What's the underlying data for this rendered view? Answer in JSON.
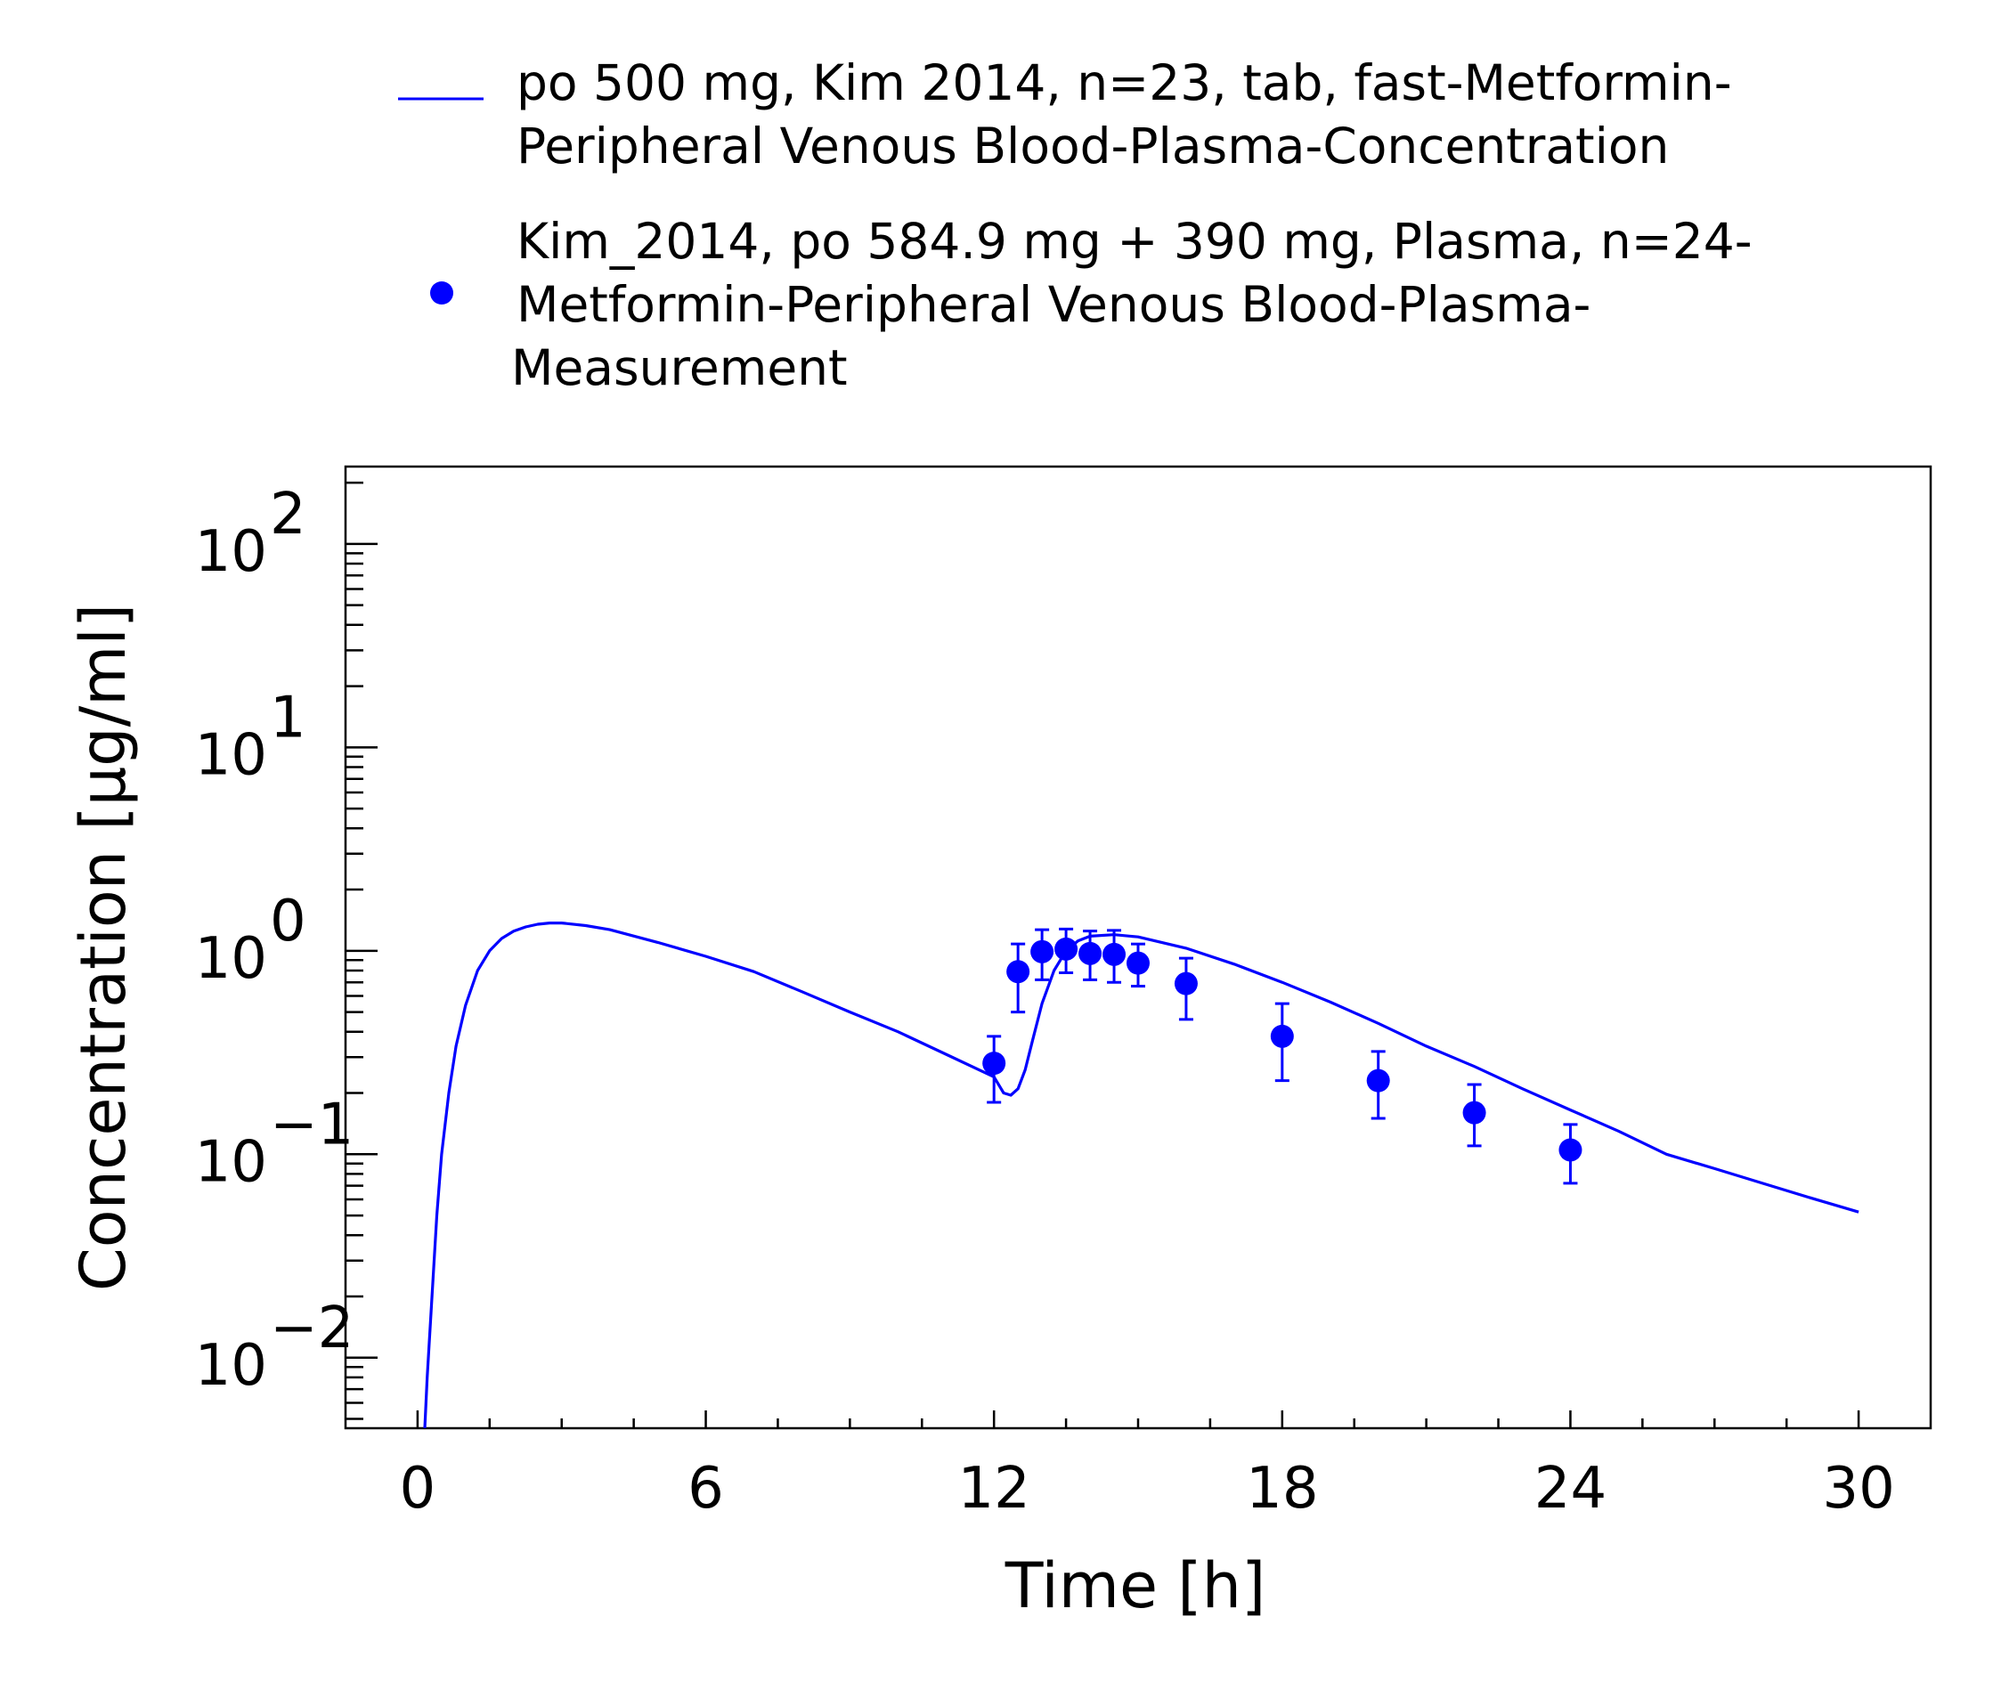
{
  "chart_data": {
    "type": "line",
    "xlabel": "Time [h]",
    "ylabel": "Concentration [µg/ml]",
    "xlim": [
      -1.5,
      31.5
    ],
    "ylim": [
      0.0045,
      240
    ],
    "yscale": "log",
    "xticks": [
      0,
      6,
      12,
      18,
      24,
      30
    ],
    "yticks": [
      {
        "value": 0.01,
        "base": "10",
        "exp": "−2"
      },
      {
        "value": 0.1,
        "base": "10",
        "exp": "−1"
      },
      {
        "value": 1,
        "base": "10",
        "exp": "0"
      },
      {
        "value": 10,
        "base": "10",
        "exp": "1"
      },
      {
        "value": 100,
        "base": "10",
        "exp": "2"
      }
    ],
    "legend_position": "top",
    "series": [
      {
        "kind": "line",
        "color": "#0000ff",
        "legend": [
          "po 500 mg, Kim 2014, n=23, tab, fast-Metformin-",
          "Peripheral Venous Blood-Plasma-Concentration"
        ],
        "x": [
          0.15,
          0.2,
          0.3,
          0.4,
          0.5,
          0.65,
          0.8,
          1.0,
          1.25,
          1.5,
          1.75,
          2.0,
          2.25,
          2.5,
          2.75,
          3.0,
          3.5,
          4.0,
          5.0,
          6.0,
          7.0,
          8.0,
          9.0,
          10.0,
          11.0,
          12.0,
          12.2,
          12.35,
          12.5,
          12.65,
          12.8,
          13.0,
          13.25,
          13.5,
          13.75,
          14.0,
          14.5,
          15.0,
          16.0,
          17.0,
          18.0,
          19.0,
          20.0,
          21.0,
          22.0,
          23.0,
          24.0,
          25.0,
          26.0,
          27.0,
          28.0,
          29.0,
          30.0
        ],
        "y": [
          0.0045,
          0.008,
          0.02,
          0.05,
          0.1,
          0.2,
          0.34,
          0.54,
          0.8,
          1.0,
          1.15,
          1.25,
          1.31,
          1.35,
          1.37,
          1.37,
          1.33,
          1.27,
          1.1,
          0.94,
          0.79,
          0.63,
          0.5,
          0.4,
          0.31,
          0.24,
          0.2,
          0.195,
          0.21,
          0.26,
          0.36,
          0.55,
          0.8,
          1.0,
          1.12,
          1.18,
          1.2,
          1.17,
          1.03,
          0.86,
          0.7,
          0.56,
          0.44,
          0.34,
          0.27,
          0.21,
          0.165,
          0.13,
          0.1,
          0.085,
          0.072,
          0.061,
          0.052
        ]
      },
      {
        "kind": "errorbar",
        "color": "#0000ff",
        "legend": [
          "Kim_2014, po 584.9 mg + 390 mg, Plasma, n=24-",
          "Metformin-Peripheral Venous Blood-Plasma-",
          "Measurement"
        ],
        "points": [
          {
            "x": 12.0,
            "y": 0.28,
            "lo": 0.18,
            "hi": 0.38
          },
          {
            "x": 12.5,
            "y": 0.79,
            "lo": 0.5,
            "hi": 1.08
          },
          {
            "x": 13.0,
            "y": 0.99,
            "lo": 0.72,
            "hi": 1.27
          },
          {
            "x": 13.5,
            "y": 1.02,
            "lo": 0.78,
            "hi": 1.28
          },
          {
            "x": 14.0,
            "y": 0.97,
            "lo": 0.72,
            "hi": 1.25
          },
          {
            "x": 14.5,
            "y": 0.96,
            "lo": 0.7,
            "hi": 1.26
          },
          {
            "x": 15.0,
            "y": 0.87,
            "lo": 0.67,
            "hi": 1.08
          },
          {
            "x": 16.0,
            "y": 0.69,
            "lo": 0.46,
            "hi": 0.92
          },
          {
            "x": 18.0,
            "y": 0.38,
            "lo": 0.23,
            "hi": 0.55
          },
          {
            "x": 20.0,
            "y": 0.23,
            "lo": 0.15,
            "hi": 0.32
          },
          {
            "x": 22.0,
            "y": 0.16,
            "lo": 0.11,
            "hi": 0.22
          },
          {
            "x": 24.0,
            "y": 0.105,
            "lo": 0.072,
            "hi": 0.14
          }
        ]
      }
    ]
  }
}
